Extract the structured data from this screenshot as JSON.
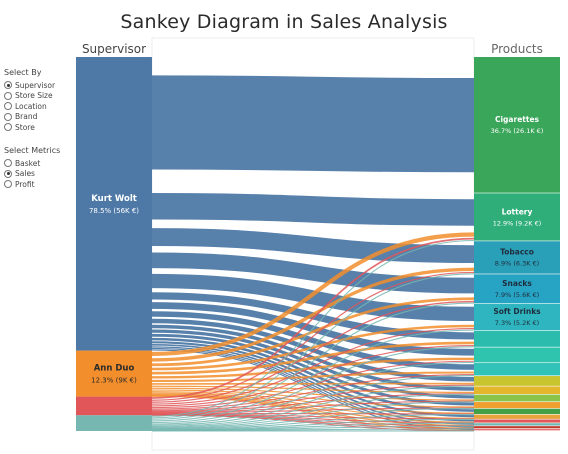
{
  "title": "Sankey Diagram in Sales Analysis",
  "controls": {
    "select_by": {
      "label": "Select By",
      "options": [
        "Supervisor",
        "Store Size",
        "Location",
        "Brand",
        "Store"
      ],
      "selected": "Supervisor"
    },
    "select_metrics": {
      "label": "Select Metrics",
      "options": [
        "Basket",
        "Sales",
        "Profit"
      ],
      "selected": "Sales"
    }
  },
  "chart_data": {
    "type": "sankey",
    "metric": "Sales",
    "left_header": "Supervisor",
    "right_header": "Products",
    "sources": [
      {
        "name": "Kurt Wolt",
        "share": 78.5,
        "label": "78.5% (56K €)",
        "color": "#4e79a7"
      },
      {
        "name": "Ann Duo",
        "share": 12.3,
        "label": "12.3% (9K €)",
        "color": "#f28e2b"
      },
      {
        "name": "",
        "share": 5.0,
        "label": "",
        "color": "#e15759"
      },
      {
        "name": "",
        "share": 4.2,
        "label": "",
        "color": "#76b7b2"
      }
    ],
    "targets": [
      {
        "name": "Cigarettes",
        "share": 36.7,
        "label": "36.7% (26.1K €)",
        "color": "#3aa65a"
      },
      {
        "name": "Lottery",
        "share": 12.9,
        "label": "12.9% (9.2K €)",
        "color": "#2fae7a"
      },
      {
        "name": "Tobacco",
        "share": 8.9,
        "label": "8.9% (6.3K €)",
        "color": "#2a9fb8"
      },
      {
        "name": "Snacks",
        "share": 7.9,
        "label": "7.9% (5.6K €)",
        "color": "#27a3c4"
      },
      {
        "name": "Soft Drinks",
        "share": 7.3,
        "label": "7.3% (5.2K €)",
        "color": "#2eb5bf"
      },
      {
        "name": "",
        "share": 4.5,
        "label": "",
        "color": "#2bbcad"
      },
      {
        "name": "",
        "share": 4.2,
        "label": "",
        "color": "#2ec4ad"
      },
      {
        "name": "",
        "share": 3.5,
        "label": "",
        "color": "#31c2b8"
      },
      {
        "name": "",
        "share": 2.8,
        "label": "",
        "color": "#c9c531"
      },
      {
        "name": "",
        "share": 2.2,
        "label": "",
        "color": "#e3b62c"
      },
      {
        "name": "",
        "share": 2.0,
        "label": "",
        "color": "#8bc34a"
      },
      {
        "name": "",
        "share": 1.8,
        "label": "",
        "color": "#f0a030"
      },
      {
        "name": "",
        "share": 1.6,
        "label": "",
        "color": "#43a047"
      },
      {
        "name": "",
        "share": 1.3,
        "label": "",
        "color": "#e8a33a"
      },
      {
        "name": "",
        "share": 1.0,
        "label": "",
        "color": "#e15759"
      },
      {
        "name": "",
        "share": 0.8,
        "label": "",
        "color": "#76b7b2"
      },
      {
        "name": "",
        "share": 0.7,
        "label": "",
        "color": "#c0392b"
      },
      {
        "name": "",
        "share": 0.6,
        "label": "",
        "color": "#e57373"
      }
    ]
  }
}
